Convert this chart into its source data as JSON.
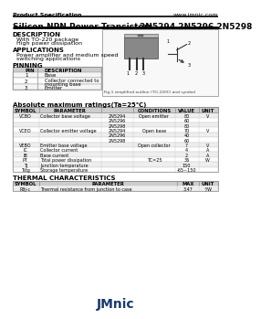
{
  "header_left": "Product Specification",
  "header_right": "www.jmnic.com",
  "title_left": "Silicon NPN Power Transistors",
  "title_right": "2N5294 2N5296 2N5298",
  "description_title": "DESCRIPTION",
  "description_items": [
    "With TO-220 package",
    "High power dissipation"
  ],
  "applications_title": "APPLICATIONS",
  "applications_items": [
    "Power amplifier and medium speed",
    "switching applications"
  ],
  "pinning_title": "PINNING",
  "pin_headers": [
    "PIN",
    "DESCRIPTION"
  ],
  "pin_rows": [
    [
      "1",
      "Base"
    ],
    [
      "2",
      "Collector connected to\nmounting base"
    ],
    [
      "3",
      "Emitter"
    ]
  ],
  "fig_caption": "Fig.1 simplified outline (TO-220C) and symbol",
  "abs_title": "Absolute maximum ratings(Ta=25℃)",
  "abs_col_headers": [
    "SYMBOL",
    "PARAMETER",
    "",
    "CONDITIONS",
    "VALUE",
    "UNIT"
  ],
  "thermal_title": "THERMAL CHARACTERISTICS",
  "thermal_col_headers": [
    "SYMBOL",
    "PARAMETER",
    "MAX",
    "UNIT"
  ],
  "footer": "JMnic",
  "bg_color": "#ffffff",
  "header_bg": "#cccccc",
  "row_bg_alt": "#f0f0f0",
  "border_color": "#888888",
  "heavy_line": "#000000",
  "text_dark": "#000000",
  "footer_color": "#1a3a6b"
}
